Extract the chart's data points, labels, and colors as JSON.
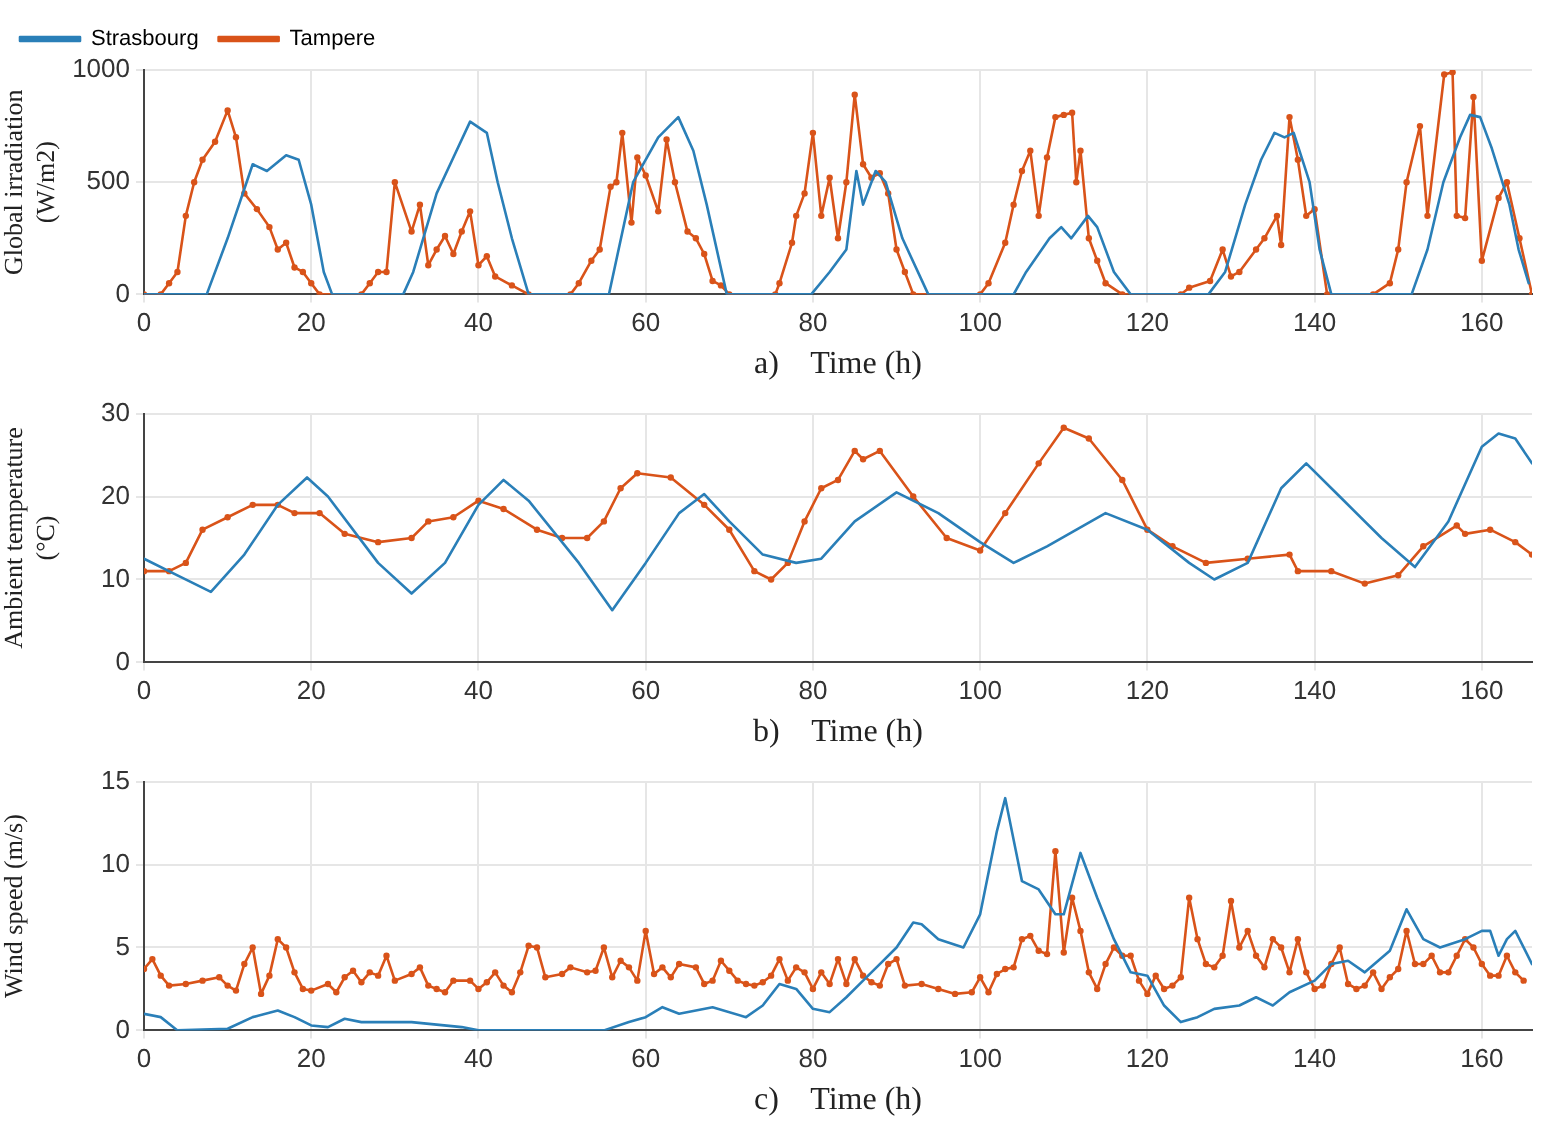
{
  "chart_data": [
    {
      "type": "line",
      "xlabel": "a)    Time (h)",
      "ylabel": "Global irradiation (W/m2)",
      "xlim": [
        0,
        166
      ],
      "xticks": [
        0,
        20,
        40,
        60,
        80,
        100,
        120,
        140,
        160
      ],
      "ylim": [
        0,
        1000
      ],
      "yticks": [
        0,
        500,
        1000
      ],
      "grid": true,
      "legend": "top left",
      "series": [
        {
          "name": "Strasbourg",
          "color": "#2a7fb8",
          "marker": "none",
          "x": [
            0,
            7.5,
            10,
            13,
            14.7,
            17,
            18.5,
            20,
            21.5,
            22.5,
            31,
            32.2,
            35,
            37,
            39,
            41,
            42.3,
            44,
            46,
            55.6,
            58.5,
            61.5,
            63.9,
            65.7,
            67.3,
            69.7,
            79.8,
            82,
            84,
            85.2,
            86,
            87.5,
            88.7,
            90.7,
            93.8,
            104,
            105.5,
            108.3,
            109.7,
            110.9,
            112.9,
            114,
            116,
            118,
            127.3,
            129.3,
            131.7,
            133.6,
            135.2,
            136.4,
            137.5,
            139.4,
            140.6,
            142,
            151.6,
            153.5,
            155.4,
            157.4,
            158.6,
            159.8,
            161.2,
            163.3,
            164.4,
            165.6
          ],
          "values": [
            0,
            0,
            250,
            580,
            550,
            620,
            600,
            400,
            100,
            0,
            0,
            100,
            450,
            610,
            770,
            720,
            500,
            250,
            0,
            0,
            500,
            700,
            790,
            640,
            400,
            0,
            0,
            100,
            200,
            550,
            400,
            550,
            500,
            250,
            0,
            0,
            100,
            250,
            300,
            250,
            350,
            300,
            100,
            0,
            0,
            100,
            400,
            600,
            720,
            700,
            720,
            500,
            200,
            0,
            0,
            200,
            500,
            700,
            800,
            790,
            650,
            400,
            200,
            50
          ]
        },
        {
          "name": "Tampere",
          "color": "#d95319",
          "marker": "circle",
          "x": [
            0,
            2,
            3,
            4,
            5,
            6,
            7,
            8.5,
            10,
            11,
            12,
            13.5,
            15,
            16,
            17,
            18,
            19,
            20,
            21,
            26,
            27,
            28,
            29,
            30,
            32,
            33,
            34,
            35,
            36,
            37,
            38,
            39,
            40,
            41,
            42,
            44,
            46,
            51,
            52,
            53.5,
            54.5,
            55.8,
            56.5,
            57.2,
            58.3,
            59,
            60,
            61.5,
            62.5,
            63.5,
            65,
            66,
            67,
            68,
            69,
            70,
            75.5,
            76,
            77.5,
            78,
            79,
            80,
            81,
            82,
            83,
            84,
            85,
            86,
            87,
            88,
            89,
            90,
            91,
            92,
            100,
            101,
            103,
            104,
            105,
            106,
            107,
            108,
            109,
            110,
            111,
            111.5,
            112,
            113,
            114,
            115,
            117,
            124,
            125,
            127.5,
            129,
            130,
            131,
            133,
            134,
            135.5,
            136,
            137,
            138,
            139,
            140,
            141.5,
            147,
            149,
            150,
            151,
            152.6,
            153.5,
            155.5,
            156.5,
            157,
            158,
            159,
            160,
            162,
            163,
            164.5,
            166
          ],
          "values": [
            0,
            0,
            50,
            100,
            350,
            500,
            600,
            680,
            820,
            700,
            450,
            380,
            300,
            200,
            230,
            120,
            100,
            50,
            0,
            0,
            50,
            100,
            100,
            500,
            280,
            400,
            130,
            200,
            260,
            180,
            280,
            370,
            130,
            170,
            80,
            40,
            0,
            0,
            50,
            150,
            200,
            480,
            500,
            720,
            320,
            610,
            530,
            370,
            690,
            500,
            280,
            250,
            180,
            60,
            40,
            0,
            0,
            50,
            230,
            350,
            450,
            720,
            350,
            520,
            250,
            500,
            890,
            580,
            520,
            540,
            450,
            200,
            100,
            0,
            0,
            50,
            230,
            400,
            550,
            640,
            350,
            610,
            790,
            800,
            810,
            500,
            640,
            250,
            150,
            50,
            0,
            0,
            30,
            60,
            200,
            80,
            100,
            200,
            250,
            350,
            220,
            790,
            600,
            350,
            380,
            0,
            0,
            50,
            200,
            500,
            750,
            350,
            980,
            990,
            350,
            340,
            880,
            150,
            430,
            500,
            250,
            0
          ]
        }
      ]
    },
    {
      "type": "line",
      "xlabel": "b)    Time (h)",
      "ylabel": "Ambient temperature (°C)",
      "xlim": [
        0,
        166
      ],
      "xticks": [
        0,
        20,
        40,
        60,
        80,
        100,
        120,
        140,
        160
      ],
      "ylim": [
        0,
        30
      ],
      "yticks": [
        0,
        10,
        20,
        30
      ],
      "grid": true,
      "series": [
        {
          "color": "#2a7fb8",
          "marker": "none",
          "x": [
            0,
            4,
            8,
            12,
            16,
            19.5,
            22,
            28,
            32,
            36,
            40,
            43,
            46,
            52,
            56,
            60,
            64,
            67,
            70,
            74,
            78,
            81,
            85,
            90,
            95,
            100,
            104,
            108,
            115,
            120,
            125,
            128,
            132,
            136,
            139,
            143,
            148,
            152,
            156,
            160,
            162,
            164,
            166
          ],
          "values": [
            12.5,
            10.5,
            8.5,
            13,
            19,
            22.3,
            20,
            12,
            8.3,
            12,
            19,
            22,
            19.5,
            12,
            6.3,
            12,
            18,
            20.3,
            17,
            13,
            12,
            12.5,
            17,
            20.5,
            18,
            14.5,
            12,
            14,
            18,
            16,
            12,
            10,
            12,
            21,
            24,
            20,
            15,
            11.5,
            17,
            26,
            27.6,
            27,
            24
          ]
        },
        {
          "color": "#d95319",
          "marker": "circle",
          "x": [
            0,
            3,
            5,
            7,
            10,
            13,
            16,
            18,
            21,
            24,
            28,
            32,
            34,
            37,
            40,
            43,
            47,
            50,
            53,
            55,
            57,
            59,
            63,
            67,
            70,
            73,
            75,
            77,
            79,
            81,
            83,
            85,
            86,
            88,
            92,
            96,
            100,
            103,
            107,
            110,
            113,
            117,
            120,
            123,
            127,
            132,
            137,
            138,
            142,
            146,
            150,
            153,
            157,
            158,
            161,
            164,
            166
          ],
          "values": [
            11,
            11,
            12,
            16,
            17.5,
            19,
            19,
            18,
            18,
            15.5,
            14.5,
            15,
            17,
            17.5,
            19.5,
            18.5,
            16,
            15,
            15,
            17,
            21,
            22.8,
            22.3,
            19,
            16,
            11,
            10,
            12,
            17,
            21,
            22,
            25.5,
            24.5,
            25.5,
            20,
            15,
            13.5,
            18,
            24,
            28.3,
            27,
            22,
            16,
            14,
            12,
            12.5,
            13,
            11,
            11,
            9.5,
            10.5,
            14,
            16.5,
            15.5,
            16,
            14.5,
            13
          ]
        }
      ]
    },
    {
      "type": "line",
      "xlabel": "c)    Time (h)",
      "ylabel": "Wind speed (m/s)",
      "xlim": [
        0,
        166
      ],
      "xticks": [
        0,
        20,
        40,
        60,
        80,
        100,
        120,
        140,
        160
      ],
      "ylim": [
        0,
        15
      ],
      "yticks": [
        0,
        5,
        10,
        15
      ],
      "grid": true,
      "series": [
        {
          "color": "#2a7fb8",
          "marker": "none",
          "x": [
            0,
            2,
            4,
            10,
            13,
            16,
            18,
            20,
            22,
            24,
            26,
            32,
            38,
            40,
            55,
            58,
            60,
            62,
            64,
            68,
            72,
            74,
            76,
            78,
            80,
            82,
            84,
            86,
            88,
            90,
            92,
            93,
            95,
            98,
            100,
            102,
            103,
            105,
            107,
            109,
            110,
            112,
            114,
            116,
            118,
            120,
            122,
            124,
            126,
            128,
            131,
            133,
            135,
            137,
            140,
            142,
            144,
            146,
            149,
            151,
            153,
            155,
            158,
            160,
            161,
            162,
            163,
            164,
            166
          ],
          "values": [
            1,
            0.8,
            0,
            0.1,
            0.8,
            1.2,
            0.8,
            0.3,
            0.2,
            0.7,
            0.5,
            0.5,
            0.2,
            0,
            0,
            0.5,
            0.8,
            1.4,
            1,
            1.4,
            0.8,
            1.5,
            2.8,
            2.5,
            1.3,
            1.1,
            2,
            3,
            4,
            5,
            6.5,
            6.4,
            5.5,
            5,
            7,
            12,
            14,
            9,
            8.5,
            7,
            7,
            10.7,
            8,
            5.5,
            3.5,
            3.3,
            1.5,
            0.5,
            0.8,
            1.3,
            1.5,
            2,
            1.5,
            2.3,
            3,
            4,
            4.2,
            3.5,
            4.8,
            7.3,
            5.5,
            5,
            5.5,
            6,
            6,
            4.5,
            5.5,
            6,
            4
          ]
        },
        {
          "color": "#d95319",
          "marker": "circle",
          "x": [
            0,
            1,
            2,
            3,
            5,
            7,
            9,
            10,
            11,
            12,
            13,
            14,
            15,
            16,
            17,
            18,
            19,
            20,
            22,
            23,
            24,
            25,
            26,
            27,
            28,
            29,
            30,
            32,
            33,
            34,
            35,
            36,
            37,
            39,
            40,
            41,
            42,
            43,
            44,
            45,
            46,
            47,
            48,
            50,
            51,
            53,
            54,
            55,
            56,
            57,
            58,
            59,
            60,
            61,
            62,
            63,
            64,
            66,
            67,
            68,
            69,
            70,
            71,
            72,
            73,
            74,
            75,
            76,
            77,
            78,
            79,
            80,
            81,
            82,
            83,
            84,
            85,
            86,
            87,
            88,
            89,
            90,
            91,
            93,
            95,
            97,
            99,
            100,
            101,
            102,
            103,
            104,
            105,
            106,
            107,
            108,
            109,
            110,
            111,
            112,
            113,
            114,
            115,
            116,
            117,
            118,
            119,
            120,
            121,
            122,
            123,
            124,
            125,
            126,
            127,
            128,
            129,
            130,
            131,
            132,
            133,
            134,
            135,
            136,
            137,
            138,
            139,
            140,
            141,
            142,
            143,
            144,
            145,
            146,
            147,
            148,
            149,
            150,
            151,
            152,
            153,
            154,
            155,
            156,
            157,
            158,
            159,
            160,
            161,
            162,
            163,
            164,
            165
          ],
          "values": [
            3.7,
            4.3,
            3.3,
            2.7,
            2.8,
            3,
            3.2,
            2.7,
            2.4,
            4,
            5,
            2.2,
            3.3,
            5.5,
            5,
            3.5,
            2.5,
            2.4,
            2.8,
            2.3,
            3.2,
            3.6,
            2.9,
            3.5,
            3.3,
            4.5,
            3,
            3.4,
            3.8,
            2.7,
            2.5,
            2.3,
            3,
            3,
            2.5,
            2.9,
            3.5,
            2.7,
            2.3,
            3.5,
            5.1,
            5,
            3.2,
            3.4,
            3.8,
            3.5,
            3.6,
            5,
            3.2,
            4.2,
            3.8,
            3,
            6,
            3.4,
            3.8,
            3.2,
            4,
            3.8,
            2.8,
            3,
            4.2,
            3.6,
            3,
            2.8,
            2.7,
            2.9,
            3.3,
            4.3,
            3,
            3.8,
            3.5,
            2.5,
            3.5,
            2.8,
            4.3,
            2.8,
            4.3,
            3.3,
            2.9,
            2.7,
            4,
            4.3,
            2.7,
            2.8,
            2.5,
            2.2,
            2.3,
            3.2,
            2.3,
            3.4,
            3.7,
            3.8,
            5.5,
            5.7,
            4.8,
            4.6,
            10.8,
            4.7,
            8,
            6,
            3.5,
            2.5,
            4,
            5,
            4.5,
            4.5,
            3,
            2.2,
            3.3,
            2.5,
            2.7,
            3.2,
            8,
            5.5,
            4,
            3.8,
            4.5,
            7.8,
            5,
            6,
            4.5,
            3.8,
            5.5,
            5,
            3.5,
            5.5,
            3.5,
            2.5,
            2.7,
            4,
            5,
            2.8,
            2.5,
            2.7,
            3.5,
            2.5,
            3.2,
            3.7,
            6,
            4,
            4,
            4.5,
            3.5,
            3.5,
            4.5,
            5.5,
            5,
            4,
            3.3,
            3.3,
            4.5,
            3.5,
            3
          ]
        }
      ]
    }
  ]
}
